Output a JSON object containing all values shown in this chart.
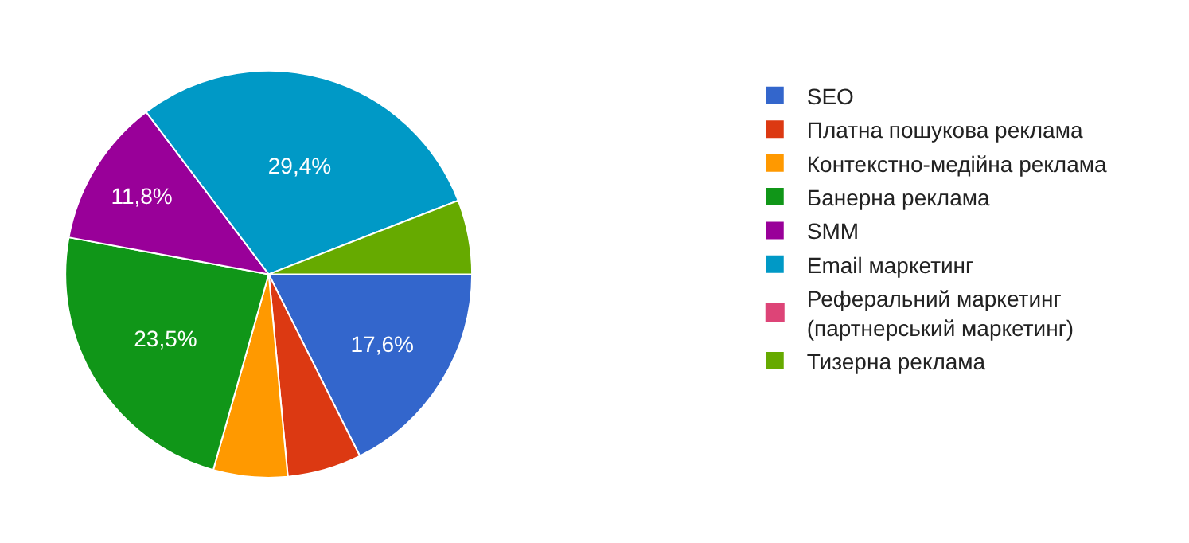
{
  "chart_data": {
    "type": "pie",
    "categories": [
      "SEO",
      "Платна пошукова реклама",
      "Контекстно-медійна реклама",
      "Банерна реклама",
      "SMM",
      "Email маркетинг",
      "Реферальний маркетинг (партнерський маркетинг)",
      "Тизерна реклама"
    ],
    "values": [
      17.6,
      5.9,
      5.9,
      23.5,
      11.8,
      29.4,
      0,
      5.9
    ],
    "value_labels": [
      "17,6%",
      null,
      null,
      "23,5%",
      "11,8%",
      "29,4%",
      null,
      null
    ],
    "colors": [
      "#3366cc",
      "#dc3912",
      "#ff9900",
      "#109618",
      "#990099",
      "#0099c6",
      "#dd4477",
      "#66aa00"
    ],
    "legend": "right"
  }
}
